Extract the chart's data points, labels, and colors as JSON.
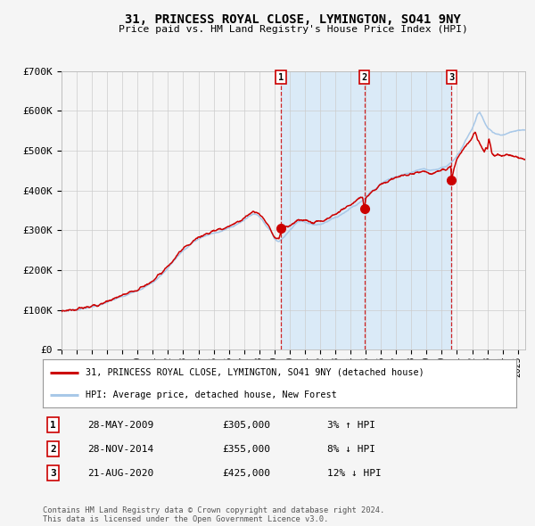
{
  "title": "31, PRINCESS ROYAL CLOSE, LYMINGTON, SO41 9NY",
  "subtitle": "Price paid vs. HM Land Registry's House Price Index (HPI)",
  "footer": "Contains HM Land Registry data © Crown copyright and database right 2024.\nThis data is licensed under the Open Government Licence v3.0.",
  "legend_line1": "31, PRINCESS ROYAL CLOSE, LYMINGTON, SO41 9NY (detached house)",
  "legend_line2": "HPI: Average price, detached house, New Forest",
  "transactions": [
    {
      "num": 1,
      "date": "28-MAY-2009",
      "price": "£305,000",
      "pct": "3%",
      "dir": "↑",
      "label": "3% ↑ HPI"
    },
    {
      "num": 2,
      "date": "28-NOV-2014",
      "price": "£355,000",
      "pct": "8%",
      "dir": "↓",
      "label": "8% ↓ HPI"
    },
    {
      "num": 3,
      "date": "21-AUG-2020",
      "price": "£425,000",
      "pct": "12%",
      "dir": "↓",
      "label": "12% ↓ HPI"
    }
  ],
  "sale_dates": [
    2009.41,
    2014.91,
    2020.64
  ],
  "sale_prices": [
    305000,
    355000,
    425000
  ],
  "hpi_color": "#a8c8e8",
  "price_color": "#cc0000",
  "background_color": "#f5f5f5",
  "shaded_region_color": "#daeaf7",
  "ylim": [
    0,
    700000
  ],
  "xlim_start": 1995.0,
  "xlim_end": 2025.5,
  "yticks": [
    0,
    100000,
    200000,
    300000,
    400000,
    500000,
    600000,
    700000
  ],
  "ytick_labels": [
    "£0",
    "£100K",
    "£200K",
    "£300K",
    "£400K",
    "£500K",
    "£600K",
    "£700K"
  ]
}
